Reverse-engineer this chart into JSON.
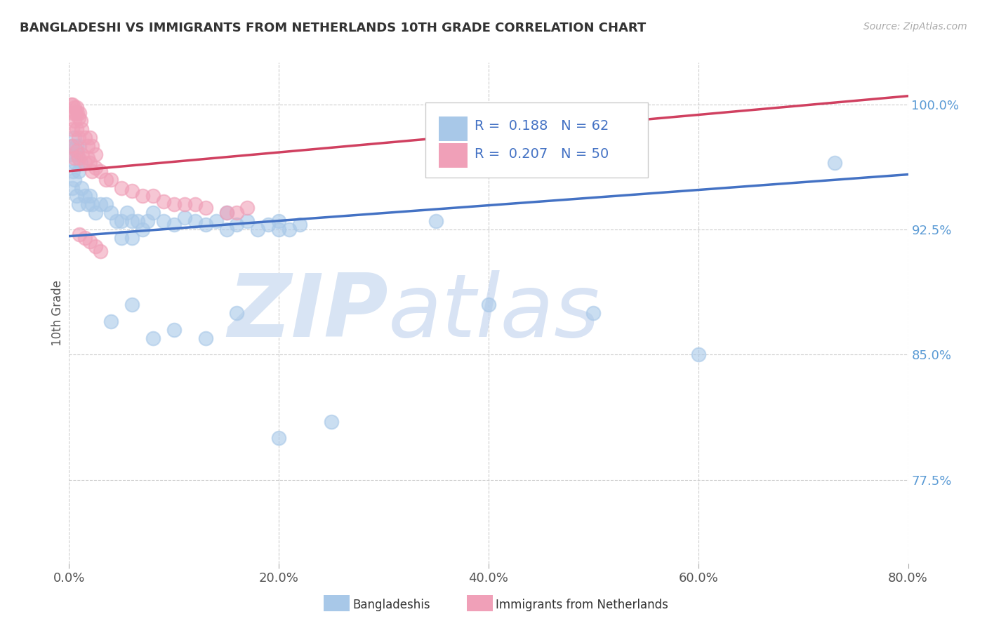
{
  "title": "BANGLADESHI VS IMMIGRANTS FROM NETHERLANDS 10TH GRADE CORRELATION CHART",
  "source": "Source: ZipAtlas.com",
  "ylabel": "10th Grade",
  "xlim": [
    0.0,
    0.8
  ],
  "ylim": [
    0.725,
    1.025
  ],
  "yticks": [
    0.775,
    0.85,
    0.925,
    1.0
  ],
  "ytick_labels": [
    "77.5%",
    "85.0%",
    "92.5%",
    "100.0%"
  ],
  "xticks": [
    0.0,
    0.2,
    0.4,
    0.6,
    0.8
  ],
  "xtick_labels": [
    "0.0%",
    "20.0%",
    "40.0%",
    "60.0%",
    "80.0%"
  ],
  "blue_R": 0.188,
  "blue_N": 62,
  "pink_R": 0.207,
  "pink_N": 50,
  "blue_color": "#A8C8E8",
  "pink_color": "#F0A0B8",
  "line_blue": "#4472C4",
  "line_pink": "#D04060",
  "watermark_zip": "ZIP",
  "watermark_atlas": "atlas",
  "watermark_color": "#D8E4F4",
  "legend_label_blue": "Bangladeshis",
  "legend_label_pink": "Immigrants from Netherlands",
  "blue_line_x0": 0.0,
  "blue_line_y0": 0.921,
  "blue_line_x1": 0.8,
  "blue_line_y1": 0.958,
  "pink_line_x0": 0.0,
  "pink_line_y0": 0.96,
  "pink_line_x1": 0.8,
  "pink_line_y1": 1.005,
  "blue_x": [
    0.002,
    0.003,
    0.004,
    0.005,
    0.006,
    0.007,
    0.008,
    0.009,
    0.01,
    0.011,
    0.003,
    0.005,
    0.007,
    0.009,
    0.012,
    0.015,
    0.018,
    0.02,
    0.022,
    0.025,
    0.03,
    0.035,
    0.04,
    0.045,
    0.05,
    0.055,
    0.06,
    0.065,
    0.07,
    0.075,
    0.08,
    0.09,
    0.1,
    0.11,
    0.12,
    0.13,
    0.14,
    0.15,
    0.16,
    0.17,
    0.18,
    0.19,
    0.2,
    0.21,
    0.22,
    0.05,
    0.06,
    0.15,
    0.2,
    0.35,
    0.04,
    0.06,
    0.08,
    0.1,
    0.13,
    0.16,
    0.4,
    0.5,
    0.6,
    0.73,
    0.2,
    0.25
  ],
  "blue_y": [
    0.97,
    0.975,
    0.96,
    0.98,
    0.965,
    0.975,
    0.97,
    0.96,
    0.975,
    0.965,
    0.95,
    0.955,
    0.945,
    0.94,
    0.95,
    0.945,
    0.94,
    0.945,
    0.94,
    0.935,
    0.94,
    0.94,
    0.935,
    0.93,
    0.93,
    0.935,
    0.93,
    0.93,
    0.925,
    0.93,
    0.935,
    0.93,
    0.928,
    0.932,
    0.93,
    0.928,
    0.93,
    0.935,
    0.928,
    0.93,
    0.925,
    0.928,
    0.93,
    0.925,
    0.928,
    0.92,
    0.92,
    0.925,
    0.925,
    0.93,
    0.87,
    0.88,
    0.86,
    0.865,
    0.86,
    0.875,
    0.88,
    0.875,
    0.85,
    0.965,
    0.8,
    0.81
  ],
  "pink_x": [
    0.002,
    0.003,
    0.004,
    0.005,
    0.006,
    0.007,
    0.008,
    0.009,
    0.01,
    0.011,
    0.003,
    0.005,
    0.007,
    0.009,
    0.012,
    0.015,
    0.018,
    0.02,
    0.022,
    0.025,
    0.003,
    0.005,
    0.007,
    0.009,
    0.012,
    0.015,
    0.018,
    0.02,
    0.022,
    0.025,
    0.03,
    0.035,
    0.04,
    0.05,
    0.06,
    0.07,
    0.08,
    0.09,
    0.1,
    0.11,
    0.12,
    0.13,
    0.15,
    0.16,
    0.17,
    0.01,
    0.015,
    0.02,
    0.025,
    0.03
  ],
  "pink_y": [
    1.0,
    1.0,
    0.995,
    0.998,
    0.995,
    0.998,
    0.995,
    0.992,
    0.995,
    0.99,
    0.985,
    0.99,
    0.985,
    0.98,
    0.985,
    0.98,
    0.975,
    0.98,
    0.975,
    0.97,
    0.975,
    0.968,
    0.972,
    0.968,
    0.97,
    0.965,
    0.968,
    0.965,
    0.96,
    0.962,
    0.96,
    0.955,
    0.955,
    0.95,
    0.948,
    0.945,
    0.945,
    0.942,
    0.94,
    0.94,
    0.94,
    0.938,
    0.935,
    0.935,
    0.938,
    0.922,
    0.92,
    0.918,
    0.915,
    0.912
  ]
}
